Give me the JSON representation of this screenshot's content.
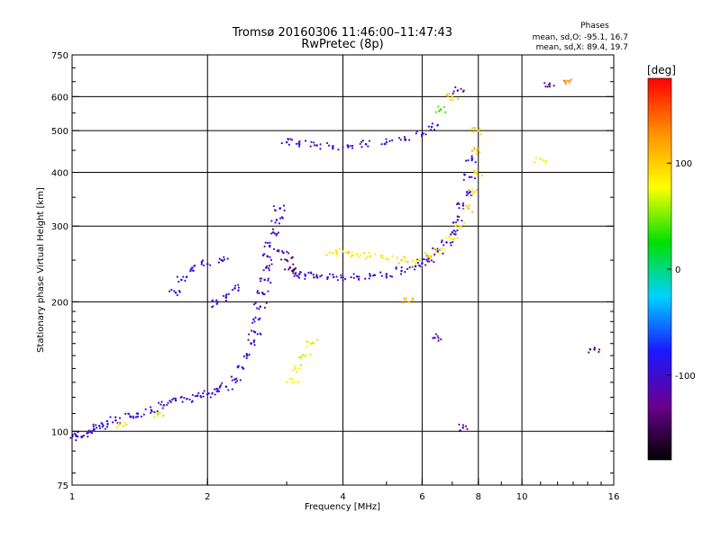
{
  "header": {
    "title_line1": "Tromsø 20160306 11:46:00–11:47:43",
    "title_line2": "RwPretec (8p)"
  },
  "stats": {
    "heading": "Phases",
    "line_o": "mean, sd,O: -95.1, 16.7",
    "line_x": "mean, sd,X:  89.4, 19.7"
  },
  "colorbar": {
    "label": "[deg]",
    "ticks": [
      {
        "value": 100,
        "label": "100"
      },
      {
        "value": 0,
        "label": "0"
      },
      {
        "value": -100,
        "label": "-100"
      }
    ],
    "range": [
      -180,
      180
    ]
  },
  "chart_data": {
    "type": "scatter",
    "title": "Tromsø 20160306 11:46:00–11:47:43",
    "subtitle": "RwPretec (8p)",
    "xlabel": "Frequency [MHz]",
    "ylabel": "Stationary phase Virtual Height [km]",
    "x_scale": "log",
    "y_scale": "log",
    "xlim": [
      1,
      16
    ],
    "ylim": [
      75,
      750
    ],
    "x_ticks": [
      {
        "value": 1,
        "label": "1"
      },
      {
        "value": 2,
        "label": "2"
      },
      {
        "value": 4,
        "label": "4"
      },
      {
        "value": 6,
        "label": "6"
      },
      {
        "value": 8,
        "label": "8"
      },
      {
        "value": 10,
        "label": "10"
      },
      {
        "value": 16,
        "label": "16"
      }
    ],
    "y_ticks": [
      {
        "value": 75,
        "label": "75"
      },
      {
        "value": 100,
        "label": "100"
      },
      {
        "value": 200,
        "label": "200"
      },
      {
        "value": 300,
        "label": "300"
      },
      {
        "value": 400,
        "label": "400"
      },
      {
        "value": 500,
        "label": "500"
      },
      {
        "value": 600,
        "label": "600"
      },
      {
        "value": 750,
        "label": "750"
      }
    ],
    "grid_x": [
      2,
      4,
      6,
      8,
      10
    ],
    "grid_y": [
      100,
      200,
      300,
      400,
      500,
      600
    ],
    "color_variable": "phase [deg]",
    "points": [
      [
        1.02,
        98,
        -100
      ],
      [
        1.05,
        97,
        -105
      ],
      [
        1.08,
        99,
        -98
      ],
      [
        1.12,
        101,
        -102
      ],
      [
        1.15,
        103,
        -95
      ],
      [
        1.2,
        104,
        -100
      ],
      [
        1.25,
        106,
        -97
      ],
      [
        1.3,
        103,
        90
      ],
      [
        1.35,
        108,
        -103
      ],
      [
        1.4,
        110,
        -99
      ],
      [
        1.5,
        112,
        -101
      ],
      [
        1.55,
        109,
        70
      ],
      [
        1.6,
        115,
        -96
      ],
      [
        1.7,
        118,
        -100
      ],
      [
        1.8,
        119,
        -104
      ],
      [
        1.9,
        121,
        -98
      ],
      [
        2.0,
        122,
        -100
      ],
      [
        2.1,
        124,
        -95
      ],
      [
        2.2,
        127,
        -102
      ],
      [
        2.3,
        132,
        -99
      ],
      [
        2.4,
        140,
        -100
      ],
      [
        2.45,
        150,
        -97
      ],
      [
        2.5,
        160,
        -101
      ],
      [
        2.55,
        170,
        -98
      ],
      [
        2.6,
        182,
        -96
      ],
      [
        2.62,
        195,
        -103
      ],
      [
        2.65,
        210,
        -100
      ],
      [
        2.68,
        225,
        -97
      ],
      [
        2.7,
        240,
        -110
      ],
      [
        2.72,
        255,
        -95
      ],
      [
        2.75,
        270,
        -102
      ],
      [
        2.8,
        290,
        -105
      ],
      [
        2.85,
        310,
        -98
      ],
      [
        2.9,
        330,
        -100
      ],
      [
        2.95,
        260,
        -120
      ],
      [
        3.0,
        250,
        -130
      ],
      [
        3.05,
        240,
        -135
      ],
      [
        3.1,
        236,
        -140
      ],
      [
        3.2,
        232,
        -100
      ],
      [
        3.3,
        230,
        -96
      ],
      [
        3.5,
        229,
        -101
      ],
      [
        3.7,
        228,
        -98
      ],
      [
        4.0,
        228,
        -100
      ],
      [
        4.3,
        229,
        -103
      ],
      [
        4.6,
        230,
        -97
      ],
      [
        5.0,
        232,
        -100
      ],
      [
        5.4,
        236,
        -99
      ],
      [
        5.8,
        242,
        -102
      ],
      [
        6.0,
        246,
        -98
      ],
      [
        6.2,
        252,
        -100
      ],
      [
        6.5,
        262,
        -101
      ],
      [
        6.8,
        275,
        -97
      ],
      [
        7.0,
        290,
        -100
      ],
      [
        7.2,
        310,
        -96
      ],
      [
        7.4,
        335,
        -103
      ],
      [
        7.55,
        360,
        -98
      ],
      [
        7.65,
        390,
        -100
      ],
      [
        7.75,
        430,
        -102
      ],
      [
        3.8,
        260,
        90
      ],
      [
        4.0,
        262,
        95
      ],
      [
        4.3,
        258,
        88
      ],
      [
        4.6,
        255,
        92
      ],
      [
        5.0,
        252,
        85
      ],
      [
        5.4,
        250,
        100
      ],
      [
        5.8,
        246,
        80
      ],
      [
        6.2,
        255,
        95
      ],
      [
        6.6,
        265,
        90
      ],
      [
        7.0,
        280,
        85
      ],
      [
        7.3,
        300,
        92
      ],
      [
        7.6,
        330,
        100
      ],
      [
        7.8,
        360,
        95
      ],
      [
        7.9,
        400,
        100
      ],
      [
        7.95,
        450,
        105
      ],
      [
        8.0,
        500,
        98
      ],
      [
        3.0,
        470,
        -100
      ],
      [
        3.2,
        465,
        -98
      ],
      [
        3.5,
        462,
        -101
      ],
      [
        3.8,
        460,
        -97
      ],
      [
        4.1,
        462,
        -103
      ],
      [
        4.5,
        465,
        -100
      ],
      [
        5.0,
        470,
        -99
      ],
      [
        5.5,
        478,
        -102
      ],
      [
        6.0,
        490,
        -98
      ],
      [
        6.3,
        510,
        -100
      ],
      [
        6.6,
        560,
        30
      ],
      [
        7.0,
        600,
        110
      ],
      [
        7.2,
        620,
        -100
      ],
      [
        1.7,
        210,
        -100
      ],
      [
        1.75,
        225,
        -98
      ],
      [
        1.85,
        240,
        -102
      ],
      [
        2.0,
        245,
        -99
      ],
      [
        2.15,
        250,
        -101
      ],
      [
        2.1,
        198,
        -97
      ],
      [
        2.2,
        205,
        -103
      ],
      [
        2.3,
        215,
        -100
      ],
      [
        3.1,
        130,
        80
      ],
      [
        3.2,
        140,
        75
      ],
      [
        3.3,
        150,
        70
      ],
      [
        3.4,
        160,
        72
      ],
      [
        5.6,
        200,
        110
      ],
      [
        6.4,
        165,
        -110
      ],
      [
        7.4,
        102,
        -120
      ],
      [
        11.5,
        640,
        -120
      ],
      [
        12.5,
        650,
        130
      ],
      [
        11.0,
        430,
        90
      ],
      [
        14.5,
        155,
        -125
      ]
    ]
  },
  "colors": {
    "colormap": [
      "#000000",
      "#6a0090",
      "#1a18ff",
      "#00d2ff",
      "#00e000",
      "#ffff00",
      "#ff9000",
      "#ff0000"
    ]
  }
}
